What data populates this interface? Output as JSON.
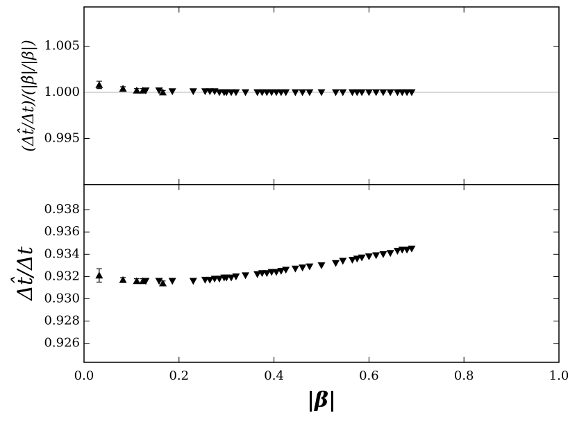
{
  "chart_data": [
    {
      "type": "scatter",
      "ylabel": "(Δt̂/Δt)/(|β̂|/|β|)",
      "xlim": [
        0,
        1
      ],
      "xticks": [
        0,
        0.2,
        0.4,
        0.6,
        0.8,
        1
      ],
      "ylim": [
        0.99,
        1.00925
      ],
      "yticks": [
        0.995,
        {
          "value": 1,
          "label": "1.000"
        },
        1.005
      ],
      "hline": 1,
      "hline_color": "#b0b0b0",
      "series": [
        {
          "marker": "up",
          "color": "#000000",
          "x": [
            0.032,
            0.082,
            0.111,
            0.124,
            0.166
          ],
          "values": [
            1.0008,
            1.0004,
            1.0002,
            1.0002,
            1.0
          ],
          "errors": [
            0.0004,
            0.0002,
            0.0002,
            0.0002,
            0.0002
          ]
        },
        {
          "marker": "down",
          "color": "#000000",
          "x": [
            0.13,
            0.158,
            0.186,
            0.23,
            0.255,
            0.265,
            0.275,
            0.285,
            0.295,
            0.3,
            0.31,
            0.32,
            0.34,
            0.365,
            0.375,
            0.385,
            0.395,
            0.405,
            0.415,
            0.425,
            0.445,
            0.46,
            0.475,
            0.5,
            0.53,
            0.545,
            0.565,
            0.575,
            0.585,
            0.6,
            0.615,
            0.63,
            0.645,
            0.66,
            0.67,
            0.68,
            0.69
          ],
          "values": [
            1.0002,
            1.0002,
            1.0001,
            1.0001,
            1.0001,
            1.0001,
            1.0001,
            1.0,
            1.0,
            1.0,
            1.0,
            1.0,
            1.0,
            1.0,
            1.0,
            1.0,
            1.0,
            1.0,
            1.0,
            1.0,
            1.0,
            1.0,
            1.0,
            1.0,
            1.0,
            1.0,
            1.0,
            1.0,
            1.0,
            1.0,
            1.0,
            1.0,
            1.0,
            1.0,
            1.0,
            1.0,
            1.0
          ]
        }
      ]
    },
    {
      "type": "scatter",
      "ylabel": "Δt̂/Δt",
      "xlabel": "|β|",
      "xlim": [
        0,
        1
      ],
      "xticks": [
        {
          "value": 0,
          "label": "0.0"
        },
        0.2,
        0.4,
        0.6,
        0.8,
        {
          "value": 1,
          "label": "1.0"
        }
      ],
      "ylim": [
        0.9243,
        0.94025
      ],
      "yticks": [
        0.926,
        0.928,
        {
          "value": 0.93,
          "label": "0.930"
        },
        0.932,
        0.934,
        0.936,
        0.938
      ],
      "series": [
        {
          "marker": "up",
          "color": "#000000",
          "x": [
            0.032,
            0.082,
            0.111,
            0.124,
            0.166
          ],
          "values": [
            0.9321,
            0.9317,
            0.9316,
            0.9316,
            0.9314
          ],
          "errors": [
            0.0006,
            0.0002,
            0.0002,
            0.0002,
            0.0002
          ]
        },
        {
          "marker": "down",
          "color": "#000000",
          "x": [
            0.13,
            0.158,
            0.186,
            0.23,
            0.255,
            0.265,
            0.275,
            0.285,
            0.295,
            0.3,
            0.31,
            0.32,
            0.34,
            0.365,
            0.375,
            0.385,
            0.395,
            0.405,
            0.415,
            0.425,
            0.445,
            0.46,
            0.475,
            0.5,
            0.53,
            0.545,
            0.565,
            0.575,
            0.585,
            0.6,
            0.615,
            0.63,
            0.645,
            0.66,
            0.67,
            0.68,
            0.69
          ],
          "values": [
            0.9316,
            0.9316,
            0.9316,
            0.9316,
            0.9317,
            0.9317,
            0.9318,
            0.9318,
            0.9319,
            0.9319,
            0.9319,
            0.932,
            0.9321,
            0.9322,
            0.9323,
            0.9323,
            0.9324,
            0.9324,
            0.9325,
            0.9326,
            0.9327,
            0.9328,
            0.9329,
            0.933,
            0.9332,
            0.9334,
            0.9335,
            0.9336,
            0.9337,
            0.9338,
            0.9339,
            0.934,
            0.9341,
            0.9343,
            0.9344,
            0.9344,
            0.9345
          ]
        }
      ]
    }
  ]
}
